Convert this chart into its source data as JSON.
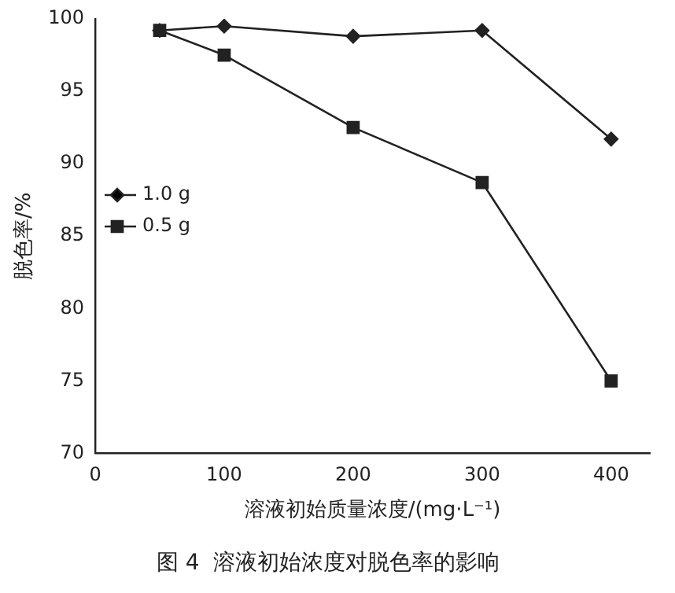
{
  "chart_data": {
    "type": "line",
    "title": "图 4  溶液初始浓度对脱色率的影响",
    "xlabel": "溶液初始质量浓度/(mg·L⁻¹)",
    "ylabel": "脱色率/%",
    "xlim": [
      0,
      430
    ],
    "xticks": [
      0,
      100,
      200,
      300,
      400
    ],
    "ylim": [
      70,
      100
    ],
    "yticks": [
      70,
      75,
      80,
      85,
      90,
      95,
      100
    ],
    "grid": false,
    "legend": "top left",
    "line_style": "solid",
    "series": [
      {
        "name": "1.0 g",
        "color": "#222222",
        "marker": "diamond",
        "x": [
          50,
          100,
          200,
          300,
          400
        ],
        "values": [
          99.2,
          99.5,
          98.8,
          99.2,
          91.7
        ]
      },
      {
        "name": "0.5 g",
        "color": "#222222",
        "marker": "square",
        "x": [
          50,
          100,
          200,
          300,
          400
        ],
        "values": [
          99.2,
          97.5,
          92.5,
          88.7,
          75.0
        ]
      }
    ]
  }
}
